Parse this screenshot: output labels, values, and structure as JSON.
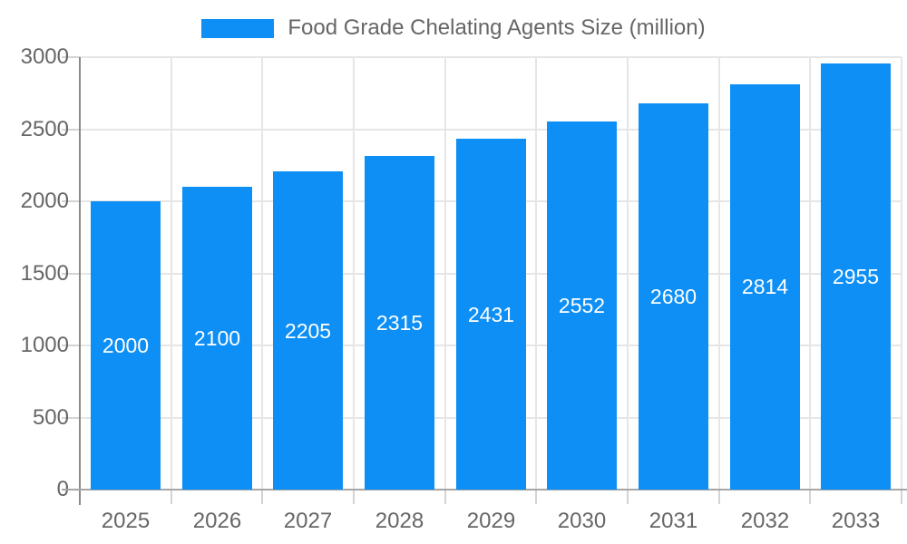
{
  "chart_data": {
    "type": "bar",
    "legend_label": "Food Grade Chelating Agents Size (million)",
    "series": [
      {
        "name": "Food Grade Chelating Agents Size (million)",
        "values": [
          2000,
          2100,
          2205,
          2315,
          2431,
          2552,
          2680,
          2814,
          2955
        ]
      }
    ],
    "categories": [
      "2025",
      "2026",
      "2027",
      "2028",
      "2029",
      "2030",
      "2031",
      "2032",
      "2033"
    ],
    "bar_value_labels": [
      "2000",
      "2100",
      "2205",
      "2315",
      "2431",
      "2552",
      "2680",
      "2814",
      "2955"
    ],
    "title": "",
    "xlabel": "",
    "ylabel": "",
    "ylim": [
      0,
      3000
    ],
    "yticks": [
      0,
      500,
      1000,
      1500,
      2000,
      2500,
      3000
    ],
    "ytick_labels": [
      "0",
      "500",
      "1000",
      "1500",
      "2000",
      "2500",
      "3000"
    ],
    "grid": true,
    "legend_position": "top",
    "bar_labels_inside": true
  },
  "colors": {
    "bar": "#0D8FF5",
    "gridline": "#E6E6E6",
    "y_axis_line": "#8A8A8A",
    "x_axis_line": "#A6A6A6",
    "tick_mark": "#D4D4D4",
    "axis_text": "#666666",
    "legend_text": "#666666",
    "bar_label_text": "#FFFFFF",
    "background": "#FFFFFF"
  }
}
